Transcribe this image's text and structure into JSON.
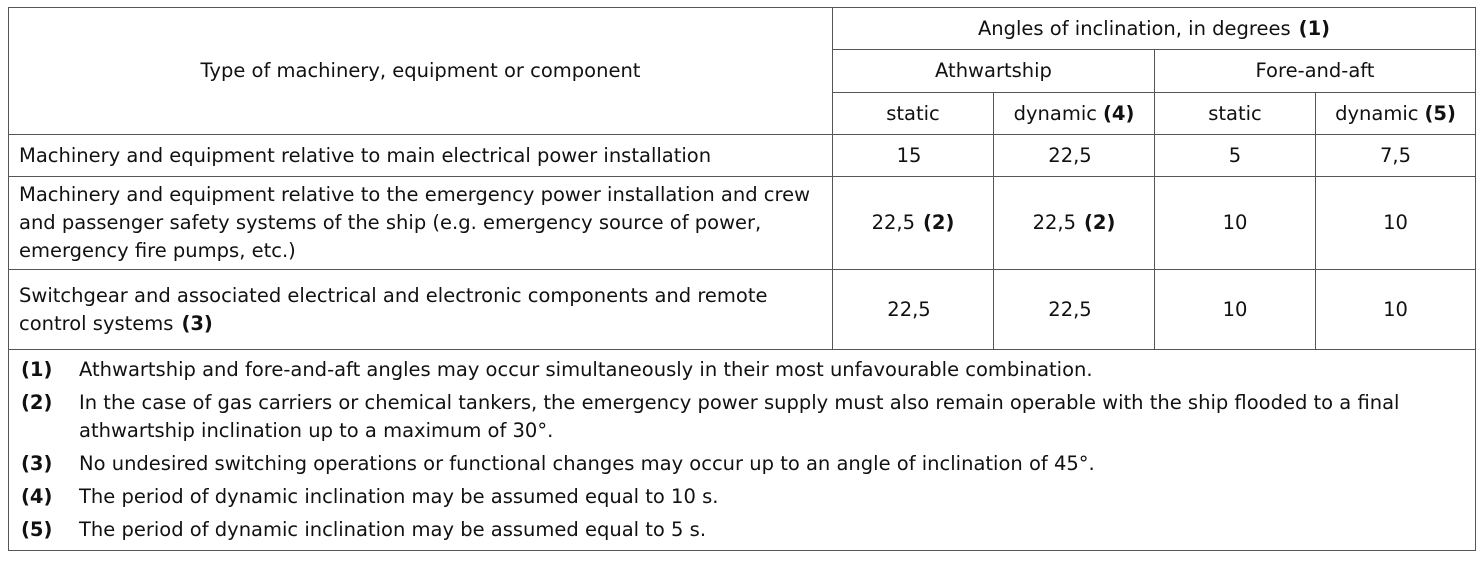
{
  "table": {
    "header": {
      "type_label": "Type of machinery, equipment or component",
      "angles_label": "Angles of inclination, in degrees",
      "angles_ref": "(1)",
      "athwartship": "Athwartship",
      "fore_and_aft": "Fore-and-aft",
      "static": "static",
      "dynamic": "dynamic",
      "dynamic_ref_athwart": "(4)",
      "dynamic_ref_fore": "(5)"
    },
    "rows": [
      {
        "type": "Machinery and equipment relative to main electrical power installation",
        "type_ref": "",
        "ath_static": "15",
        "ath_static_ref": "",
        "ath_dynamic": "22,5",
        "ath_dynamic_ref": "",
        "fa_static": "5",
        "fa_dynamic": "7,5"
      },
      {
        "type": "Machinery and equipment relative to the emergency power installation and crew and passenger safety systems of the ship (e.g. emergency source of power, emergency fire pumps, etc.)",
        "type_ref": "",
        "ath_static": "22,5",
        "ath_static_ref": "(2)",
        "ath_dynamic": "22,5",
        "ath_dynamic_ref": "(2)",
        "fa_static": "10",
        "fa_dynamic": "10"
      },
      {
        "type": "Switchgear and associated electrical and electronic components and remote control systems",
        "type_ref": "(3)",
        "ath_static": "22,5",
        "ath_static_ref": "",
        "ath_dynamic": "22,5",
        "ath_dynamic_ref": "",
        "fa_static": "10",
        "fa_dynamic": "10"
      }
    ],
    "notes": [
      {
        "key": "(1)",
        "text": "Athwartship and fore-and-aft angles may occur simultaneously in their most unfavourable combination."
      },
      {
        "key": "(2)",
        "text": "In the case of gas carriers or chemical tankers, the emergency power supply must also remain operable with the ship flooded to a final athwartship inclination up to a maximum of 30°."
      },
      {
        "key": "(3)",
        "text": "No undesired switching operations or functional changes may occur up to an angle of inclination of 45°."
      },
      {
        "key": "(4)",
        "text": "The period of dynamic inclination may be assumed equal to 10 s."
      },
      {
        "key": "(5)",
        "text": "The period of dynamic inclination may be assumed equal to 5 s."
      }
    ]
  }
}
